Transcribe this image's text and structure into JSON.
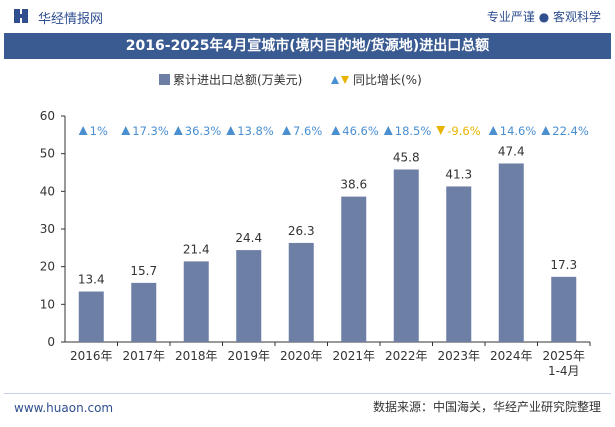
{
  "header": {
    "site_name": "华经情报网",
    "tagline": "专业严谨 ● 客观科学"
  },
  "title": "2016-2025年4月宣城市(境内目的地/货源地)进出口总额",
  "footer": {
    "url": "www.huaon.com",
    "source": "数据来源：中国海关，华经产业研究院整理"
  },
  "colors": {
    "bar": "#6e7fa6",
    "up": "#4a8fd0",
    "down": "#e8b400",
    "title_bg": "#3a5a92",
    "brand": "#2f4f8f"
  },
  "chart_data": {
    "type": "bar",
    "categories": [
      "2016年",
      "2017年",
      "2018年",
      "2019年",
      "2020年",
      "2021年",
      "2022年",
      "2023年",
      "2024年",
      "2025年\n1-4月"
    ],
    "series": [
      {
        "name": "累计进出口总额(万美元)",
        "values": [
          13.4,
          15.7,
          21.4,
          24.4,
          26.3,
          38.6,
          45.8,
          41.3,
          47.4,
          17.3
        ]
      }
    ],
    "growth": {
      "name": "同比增长(%)",
      "labels": [
        "1%",
        "17.3%",
        "36.3%",
        "13.8%",
        "7.6%",
        "46.6%",
        "18.5%",
        "-9.6%",
        "14.6%",
        "22.4%"
      ],
      "direction": [
        "up",
        "up",
        "up",
        "up",
        "up",
        "up",
        "up",
        "down",
        "up",
        "up"
      ]
    },
    "ylim": [
      0,
      60
    ],
    "yticks": [
      0,
      10,
      20,
      30,
      40,
      50,
      60
    ],
    "grid": false,
    "legend": "top-center"
  }
}
